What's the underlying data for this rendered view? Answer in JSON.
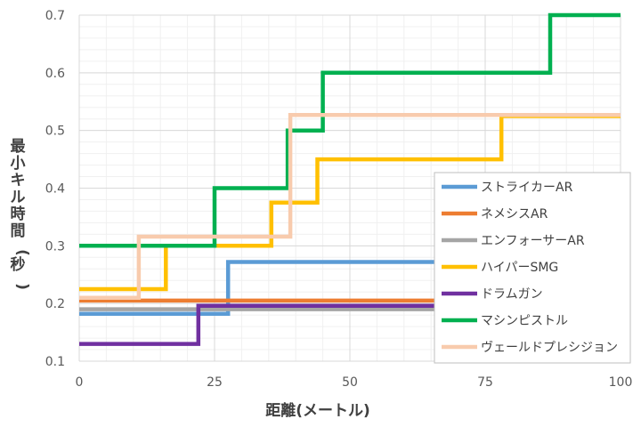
{
  "chart_data": {
    "type": "line",
    "step": true,
    "xlabel": "距離(メートル)",
    "ylabel": "最小キル時間(秒)",
    "xlim": [
      0,
      100
    ],
    "ylim": [
      0.1,
      0.7
    ],
    "x_ticks": [
      "0",
      "25",
      "50",
      "75",
      "100"
    ],
    "y_ticks": [
      "0.1",
      "0.2",
      "0.3",
      "0.4",
      "0.5",
      "0.6",
      "0.7"
    ],
    "grid": true,
    "legend_position": "right",
    "series": [
      {
        "name": "ストライカーAR",
        "color": "#5b9bd5",
        "points": [
          [
            0,
            0.182
          ],
          [
            27.5,
            0.182
          ],
          [
            27.5,
            0.272
          ],
          [
            100,
            0.272
          ]
        ]
      },
      {
        "name": "ネメシスAR",
        "color": "#ed7d31",
        "points": [
          [
            0,
            0.205
          ],
          [
            100,
            0.205
          ]
        ]
      },
      {
        "name": "エンフォーサーAR",
        "color": "#a5a5a5",
        "points": [
          [
            0,
            0.19
          ],
          [
            100,
            0.19
          ]
        ]
      },
      {
        "name": "ハイパーSMG",
        "color": "#ffc000",
        "points": [
          [
            0,
            0.225
          ],
          [
            16,
            0.225
          ],
          [
            16,
            0.3
          ],
          [
            35.5,
            0.3
          ],
          [
            35.5,
            0.375
          ],
          [
            44,
            0.375
          ],
          [
            44,
            0.45
          ],
          [
            78,
            0.45
          ],
          [
            78,
            0.525
          ],
          [
            100,
            0.525
          ]
        ]
      },
      {
        "name": "ドラムガン",
        "color": "#7030a0",
        "points": [
          [
            0,
            0.13
          ],
          [
            22,
            0.13
          ],
          [
            22,
            0.196
          ],
          [
            100,
            0.196
          ]
        ]
      },
      {
        "name": "マシンピストル",
        "color": "#00b050",
        "points": [
          [
            0,
            0.3
          ],
          [
            25,
            0.3
          ],
          [
            25,
            0.4
          ],
          [
            38.5,
            0.4
          ],
          [
            38.5,
            0.5
          ],
          [
            45,
            0.5
          ],
          [
            45,
            0.6
          ],
          [
            87,
            0.6
          ],
          [
            87,
            0.7
          ],
          [
            100,
            0.7
          ]
        ]
      },
      {
        "name": "ヴェールドプレシジョン",
        "color": "#f8cbad",
        "points": [
          [
            0,
            0.21
          ],
          [
            11,
            0.21
          ],
          [
            11,
            0.316
          ],
          [
            39,
            0.316
          ],
          [
            39,
            0.527
          ],
          [
            100,
            0.527
          ]
        ]
      }
    ]
  }
}
